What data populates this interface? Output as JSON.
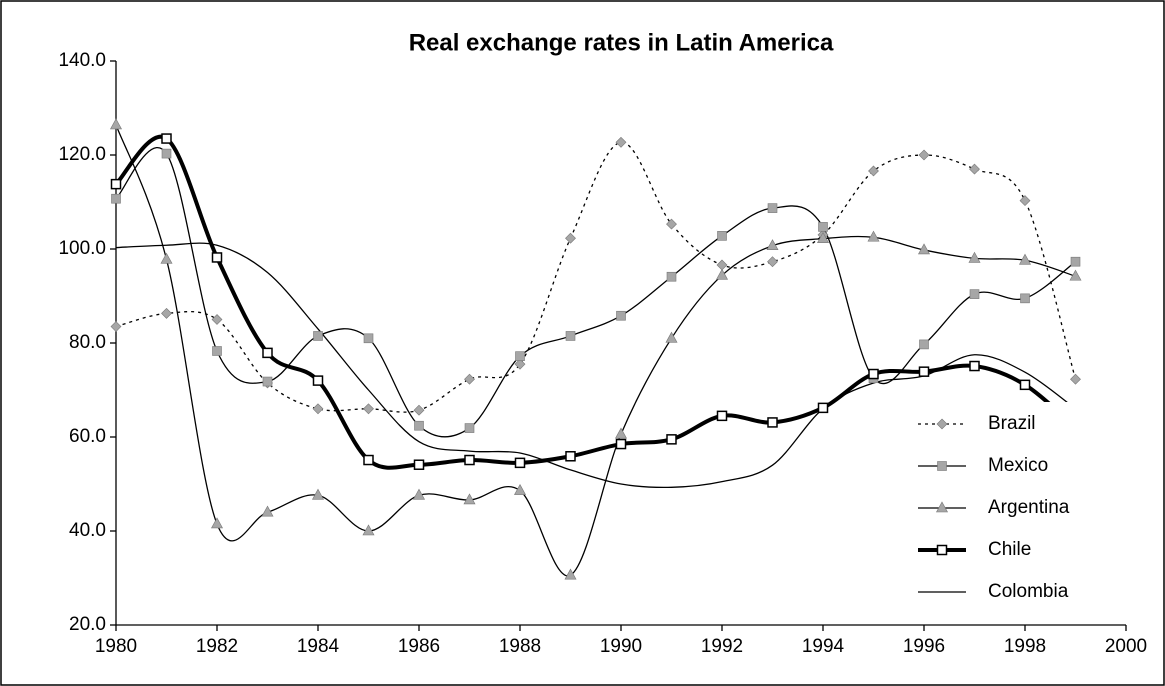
{
  "chart_data": {
    "type": "line",
    "title": "Real exchange rates in Latin America",
    "x": [
      1980,
      1981,
      1982,
      1983,
      1984,
      1985,
      1986,
      1987,
      1988,
      1989,
      1990,
      1991,
      1992,
      1993,
      1994,
      1995,
      1996,
      1997,
      1998,
      1999
    ],
    "xlim": [
      1980,
      2000
    ],
    "xticks": [
      1980,
      1982,
      1984,
      1986,
      1988,
      1990,
      1992,
      1994,
      1996,
      1998,
      2000
    ],
    "ylim": [
      20,
      140
    ],
    "yticks": [
      {
        "value": 20,
        "label": "20.0"
      },
      {
        "value": 40,
        "label": "40.0"
      },
      {
        "value": 60,
        "label": "60.0"
      },
      {
        "value": 80,
        "label": "80.0"
      },
      {
        "value": 100,
        "label": "100.0"
      },
      {
        "value": 120,
        "label": "120.0"
      },
      {
        "value": 140,
        "label": "140.0"
      }
    ],
    "smooth": true,
    "grid": false,
    "legend": "right",
    "series": [
      {
        "name": "Brazil",
        "color": "#000000",
        "dash": "dotted",
        "width": 1.3,
        "marker": "diamond",
        "marker_fill": "#a6a6a6",
        "values": [
          83.5,
          86.3,
          85,
          71.5,
          66,
          66,
          65.7,
          72.3,
          75.5,
          102.3,
          122.7,
          105.3,
          96.6,
          97.3,
          103,
          116.6,
          120,
          117,
          110.3,
          72.3
        ]
      },
      {
        "name": "Mexico",
        "color": "#000000",
        "dash": "solid",
        "width": 1.3,
        "marker": "square",
        "marker_fill": "#a6a6a6",
        "values": [
          110.7,
          120.3,
          78.3,
          71.8,
          81.5,
          81,
          62.4,
          61.9,
          77.2,
          81.5,
          85.8,
          94.1,
          102.8,
          108.7,
          104.7,
          72.5,
          79.7,
          90.4,
          89.5,
          97.3
        ]
      },
      {
        "name": "Argentina",
        "color": "#000000",
        "dash": "solid",
        "width": 1.3,
        "marker": "triangle",
        "marker_fill": "#a6a6a6",
        "values": [
          126.4,
          97.8,
          41.5,
          44,
          47.6,
          40,
          47.6,
          46.6,
          48.6,
          30.6,
          60.6,
          81,
          94.4,
          100.7,
          102.2,
          102.5,
          99.8,
          98,
          97.6,
          94.2
        ]
      },
      {
        "name": "Chile",
        "color": "#000000",
        "dash": "solid",
        "width": 4,
        "marker": "square",
        "marker_fill": "#ffffff",
        "values": [
          113.8,
          123.5,
          98.2,
          77.9,
          72,
          55.1,
          54.1,
          55.1,
          54.5,
          55.9,
          58.5,
          59.5,
          64.5,
          63.1,
          66.2,
          73.4,
          73.9,
          75.1,
          71.1,
          62
        ]
      },
      {
        "name": "Colombia",
        "color": "#000000",
        "dash": "solid",
        "width": 1.3,
        "marker": "none",
        "marker_fill": "#ffffff",
        "values": [
          100.3,
          100.8,
          100.8,
          95,
          83,
          70,
          59,
          57,
          56.6,
          53,
          50,
          49.3,
          50.5,
          54,
          66,
          71.5,
          73,
          77.5,
          73.8,
          66
        ]
      }
    ]
  }
}
